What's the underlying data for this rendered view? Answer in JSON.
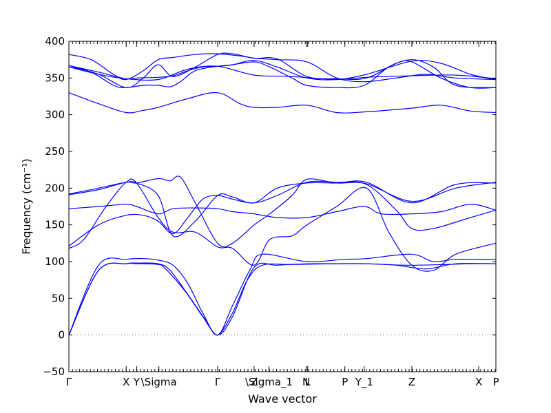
{
  "chart_data": {
    "type": "line",
    "xlabel": "Wave vector",
    "ylabel": "Frequency (cm⁻¹)",
    "ylim": [
      -50,
      400
    ],
    "y_ticks": [
      -50,
      0,
      50,
      100,
      150,
      200,
      250,
      300,
      350,
      400
    ],
    "xlim": [
      0,
      2.87
    ],
    "x_ticks": [
      {
        "pos": 0.0,
        "label": "Γ"
      },
      {
        "pos": 0.385,
        "label": "X"
      },
      {
        "pos": 0.455,
        "label": "Y"
      },
      {
        "pos": 0.605,
        "label": "\\Sigma"
      },
      {
        "pos": 1.0,
        "label": "Γ"
      },
      {
        "pos": 1.245,
        "label": "Z"
      },
      {
        "pos": 1.345,
        "label": "\\Sigma_1"
      },
      {
        "pos": 1.595,
        "label": "N"
      },
      {
        "pos": 1.605,
        "label": "L"
      },
      {
        "pos": 1.855,
        "label": "P"
      },
      {
        "pos": 1.985,
        "label": "Y_1"
      },
      {
        "pos": 2.305,
        "label": "Z"
      },
      {
        "pos": 2.755,
        "label": "X"
      },
      {
        "pos": 2.87,
        "label": "P"
      }
    ],
    "zero_line": true,
    "line_color": "#0000ff",
    "series": [
      {
        "x": [
          0,
          0.2,
          0.385,
          0.455,
          0.6,
          0.65,
          0.78,
          0.9,
          1.0,
          1.1,
          1.245,
          1.4,
          1.6,
          1.8,
          2.0,
          2.3,
          2.7,
          2.87
        ],
        "values": [
          0,
          88,
          97,
          97,
          96,
          90,
          60,
          25,
          0,
          25,
          92,
          95,
          97,
          97,
          97,
          95,
          97,
          97
        ]
      },
      {
        "x": [
          0,
          0.2,
          0.385,
          0.455,
          0.6,
          0.68,
          0.8,
          0.92,
          1.0,
          1.1,
          1.2,
          1.3,
          1.5,
          1.8,
          2.0,
          2.2,
          2.4,
          2.6,
          2.87
        ],
        "values": [
          0,
          88,
          97,
          98,
          97,
          88,
          55,
          20,
          0,
          30,
          75,
          95,
          96,
          97,
          97,
          95,
          90,
          97,
          97
        ]
      },
      {
        "x": [
          0,
          0.2,
          0.385,
          0.5,
          0.6,
          0.7,
          0.8,
          0.9,
          1.0,
          1.1,
          1.22,
          1.3,
          1.6,
          1.85,
          2.0,
          2.3,
          2.45,
          2.6,
          2.87
        ],
        "values": [
          0,
          95,
          103,
          104,
          102,
          95,
          70,
          30,
          0,
          40,
          90,
          110,
          100,
          103,
          104,
          110,
          100,
          103,
          103
        ]
      },
      {
        "x": [
          0,
          0.1,
          0.25,
          0.385,
          0.455,
          0.6,
          0.7,
          0.85,
          1.0,
          1.1,
          1.245,
          1.35,
          1.5,
          1.6,
          1.8,
          2.0,
          2.15,
          2.305,
          2.45,
          2.6,
          2.87
        ],
        "values": [
          118,
          130,
          175,
          208,
          207,
          160,
          140,
          140,
          120,
          118,
          95,
          130,
          135,
          150,
          175,
          200,
          140,
          95,
          88,
          110,
          125
        ]
      },
      {
        "x": [
          0,
          0.2,
          0.385,
          0.5,
          0.6,
          0.7,
          0.8,
          0.9,
          1.0,
          1.1,
          1.245,
          1.4,
          1.6,
          1.8,
          2.0,
          2.2,
          2.305,
          2.45,
          2.7,
          2.87
        ],
        "values": [
          121,
          150,
          163,
          163,
          155,
          138,
          160,
          185,
          190,
          185,
          180,
          190,
          208,
          208,
          205,
          170,
          145,
          145,
          160,
          170
        ]
      },
      {
        "x": [
          0,
          0.2,
          0.385,
          0.455,
          0.6,
          0.7,
          0.85,
          1.0,
          1.1,
          1.245,
          1.4,
          1.6,
          1.8,
          2.0,
          2.305,
          2.6,
          2.87
        ],
        "values": [
          191,
          198,
          208,
          207,
          190,
          135,
          155,
          190,
          188,
          180,
          200,
          207,
          207,
          208,
          180,
          205,
          207
        ]
      },
      {
        "x": [
          0,
          0.2,
          0.385,
          0.455,
          0.6,
          0.68,
          0.75,
          0.85,
          1.0,
          1.1,
          1.245,
          1.35,
          1.5,
          1.6,
          1.8,
          2.0,
          2.305,
          2.6,
          2.87
        ],
        "values": [
          192,
          200,
          208,
          207,
          213,
          210,
          215,
          180,
          125,
          125,
          150,
          165,
          190,
          212,
          207,
          206,
          182,
          200,
          208
        ]
      },
      {
        "x": [
          0,
          0.2,
          0.385,
          0.455,
          0.6,
          0.7,
          0.85,
          1.0,
          1.1,
          1.245,
          1.4,
          1.6,
          1.8,
          1.985,
          2.1,
          2.305,
          2.5,
          2.7,
          2.87
        ],
        "values": [
          172,
          175,
          178,
          175,
          165,
          172,
          173,
          172,
          168,
          165,
          160,
          160,
          168,
          175,
          165,
          165,
          168,
          178,
          170
        ]
      },
      {
        "x": [
          0,
          0.2,
          0.385,
          0.5,
          0.6,
          0.8,
          1.0,
          1.15,
          1.245,
          1.4,
          1.6,
          1.8,
          2.0,
          2.305,
          2.5,
          2.7,
          2.87
        ],
        "values": [
          330,
          315,
          303,
          306,
          310,
          322,
          330,
          315,
          310,
          310,
          313,
          303,
          304,
          309,
          313,
          305,
          303
        ]
      },
      {
        "x": [
          0,
          0.15,
          0.3,
          0.385,
          0.5,
          0.6,
          0.68,
          0.75,
          0.85,
          1.0,
          1.1,
          1.245,
          1.35,
          1.5,
          1.6,
          1.8,
          1.985,
          2.15,
          2.305,
          2.45,
          2.6,
          2.87
        ],
        "values": [
          365,
          358,
          340,
          337,
          340,
          340,
          338,
          345,
          360,
          366,
          368,
          372,
          365,
          350,
          340,
          337,
          340,
          365,
          375,
          365,
          340,
          337
        ]
      },
      {
        "x": [
          0,
          0.15,
          0.3,
          0.385,
          0.5,
          0.6,
          0.7,
          0.85,
          1.0,
          1.15,
          1.245,
          1.4,
          1.6,
          1.8,
          1.985,
          2.2,
          2.4,
          2.6,
          2.87
        ],
        "values": [
          382,
          375,
          355,
          348,
          360,
          375,
          378,
          382,
          383,
          380,
          377,
          375,
          372,
          350,
          345,
          350,
          355,
          350,
          348
        ]
      },
      {
        "x": [
          0,
          0.2,
          0.385,
          0.455,
          0.6,
          0.7,
          0.8,
          0.9,
          1.0,
          1.1,
          1.245,
          1.4,
          1.6,
          1.8,
          2.0,
          2.305,
          2.5,
          2.7,
          2.87
        ],
        "values": [
          367,
          358,
          349,
          350,
          351,
          353,
          360,
          365,
          366,
          368,
          374,
          365,
          350,
          348,
          355,
          373,
          370,
          355,
          348
        ]
      },
      {
        "x": [
          0,
          0.2,
          0.385,
          0.5,
          0.6,
          0.7,
          0.85,
          1.0,
          1.1,
          1.245,
          1.4,
          1.6,
          1.8,
          2.0,
          2.2,
          2.305,
          2.5,
          2.7,
          2.87
        ],
        "values": [
          367,
          355,
          337,
          350,
          368,
          352,
          365,
          382,
          383,
          377,
          376,
          352,
          349,
          350,
          370,
          372,
          350,
          337,
          337
        ]
      },
      {
        "x": [
          0,
          0.2,
          0.385,
          0.6,
          0.8,
          1.0,
          1.245,
          1.5,
          1.8,
          2.0,
          2.305,
          2.6,
          2.87
        ],
        "values": [
          365,
          355,
          349,
          348,
          362,
          366,
          354,
          352,
          348,
          351,
          353,
          354,
          349
        ]
      }
    ]
  }
}
